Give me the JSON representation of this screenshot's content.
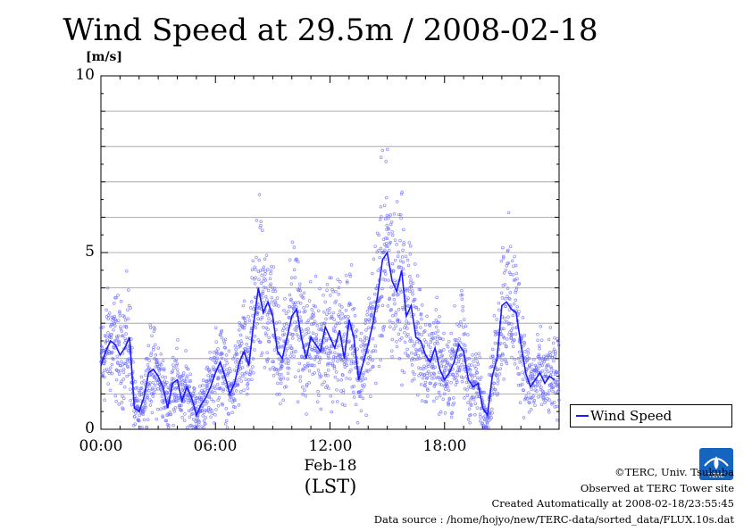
{
  "chart_data": {
    "type": "scatter",
    "title": "Wind Speed at 29.5m / 2008-02-18",
    "ylabel": "[m/s]",
    "xlabel": "(LST)",
    "date_label": "Feb-18",
    "ylim": [
      0,
      10
    ],
    "xlim": [
      0,
      24
    ],
    "y_ticks": [
      "0",
      "5",
      "10"
    ],
    "x_ticks": [
      "00:00",
      "06:00",
      "12:00",
      "18:00"
    ],
    "grid": true,
    "legend_position": "bottom-right",
    "series": [
      {
        "name": "Wind Speed",
        "color": "#1a1aff",
        "x": [
          0.0,
          0.25,
          0.5,
          0.75,
          1.0,
          1.25,
          1.5,
          1.75,
          2.0,
          2.25,
          2.5,
          2.75,
          3.0,
          3.25,
          3.5,
          3.75,
          4.0,
          4.25,
          4.5,
          4.75,
          5.0,
          5.25,
          5.5,
          5.75,
          6.0,
          6.25,
          6.5,
          6.75,
          7.0,
          7.25,
          7.5,
          7.75,
          8.0,
          8.25,
          8.5,
          8.75,
          9.0,
          9.25,
          9.5,
          9.75,
          10.0,
          10.25,
          10.5,
          10.75,
          11.0,
          11.25,
          11.5,
          11.75,
          12.0,
          12.25,
          12.5,
          12.75,
          13.0,
          13.25,
          13.5,
          13.75,
          14.0,
          14.25,
          14.5,
          14.75,
          15.0,
          15.25,
          15.5,
          15.75,
          16.0,
          16.25,
          16.5,
          16.75,
          17.0,
          17.25,
          17.5,
          17.75,
          18.0,
          18.25,
          18.5,
          18.75,
          19.0,
          19.25,
          19.5,
          19.75,
          20.0,
          20.25,
          20.5,
          20.75,
          21.0,
          21.25,
          21.5,
          21.75,
          22.0,
          22.25,
          22.5,
          22.75,
          23.0,
          23.25,
          23.5,
          23.75
        ],
        "y": [
          1.8,
          2.2,
          2.5,
          2.4,
          2.1,
          2.3,
          2.6,
          0.6,
          0.5,
          0.9,
          1.6,
          1.7,
          1.5,
          1.2,
          0.6,
          1.3,
          1.4,
          0.8,
          1.2,
          0.9,
          0.4,
          0.7,
          0.9,
          1.2,
          1.6,
          1.9,
          1.5,
          1.0,
          1.3,
          1.9,
          2.2,
          1.8,
          3.0,
          4.0,
          3.3,
          3.6,
          3.2,
          2.2,
          2.0,
          2.6,
          3.2,
          3.4,
          2.6,
          2.0,
          2.6,
          2.4,
          2.2,
          2.9,
          2.6,
          2.3,
          2.8,
          2.0,
          3.1,
          2.6,
          1.4,
          1.9,
          2.4,
          3.0,
          3.8,
          4.8,
          5.0,
          4.2,
          3.9,
          4.5,
          3.2,
          3.5,
          2.6,
          2.5,
          2.1,
          1.9,
          2.3,
          1.7,
          1.4,
          1.6,
          1.9,
          2.4,
          2.2,
          1.4,
          1.2,
          1.3,
          0.6,
          0.4,
          1.5,
          2.0,
          3.5,
          3.6,
          3.4,
          3.3,
          2.4,
          1.6,
          1.2,
          1.4,
          1.6,
          1.3,
          1.5,
          1.4
        ]
      }
    ],
    "x_scatter_count": 2600
  },
  "credits": {
    "line1": "©TERC, Univ. Tsukuba",
    "line2": "Observed at TERC Tower site",
    "line3": "Created Automatically at 2008-02-18/23:55:45",
    "line4": "Data source : /home/hojyo/new/TERC-data/sorted_data/FLUX.10s.dat"
  },
  "logo": {
    "text": "TERC"
  },
  "colors": {
    "line": "#1a1aff",
    "points": "#6a6aff",
    "grid": "#9a9a9a"
  }
}
